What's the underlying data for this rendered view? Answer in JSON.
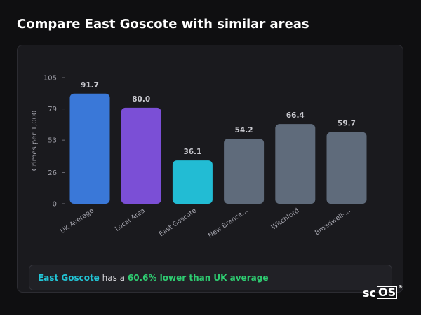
{
  "header": {
    "title": "Compare East Goscote with similar areas"
  },
  "callout": {
    "area_name": "East Goscote",
    "middle_text": " has a ",
    "highlight": "60.6% lower than UK average"
  },
  "logo": {
    "text_sc": "sc",
    "text_os": "OS",
    "reg": "®"
  },
  "colors": {
    "uk_average": "#3a78d8",
    "local_area": "#7b4fd6",
    "target_area": "#22bcd4",
    "similar_area": "#5f6b7b"
  },
  "chart_data": {
    "type": "bar",
    "ylabel": "Crimes per 1,000",
    "ylim": [
      0,
      105
    ],
    "yticks": [
      0,
      26,
      53,
      79,
      105
    ],
    "categories": [
      "UK Average",
      "Local Area",
      "East Goscote",
      "New Brance...",
      "Witchford",
      "Broadwell-..."
    ],
    "values": [
      91.7,
      80.0,
      36.1,
      54.2,
      66.4,
      59.7
    ],
    "value_labels": [
      "91.7",
      "80.0",
      "36.1",
      "54.2",
      "66.4",
      "59.7"
    ],
    "bar_colors": [
      "#3a78d8",
      "#7b4fd6",
      "#22bcd4",
      "#5f6b7b",
      "#5f6b7b",
      "#5f6b7b"
    ],
    "grid": false,
    "legend": "none"
  }
}
